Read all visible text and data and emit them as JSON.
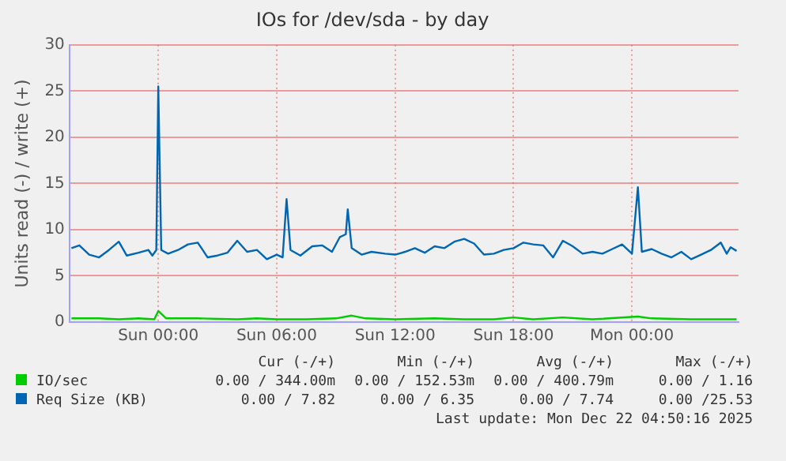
{
  "chart_data": {
    "type": "line",
    "title": "IOs for /dev/sda - by day",
    "ylabel": "Units read (-) / write (+)",
    "xlim": [
      "--12-20T19:30",
      "--12-22T05:24"
    ],
    "ylim": [
      0,
      30
    ],
    "yticks": [
      0,
      5,
      10,
      15,
      20,
      25,
      30
    ],
    "xticks": [
      {
        "value": "--12-21T00:00",
        "label": "Sun 00:00"
      },
      {
        "value": "--12-21T06:00",
        "label": "Sun 06:00"
      },
      {
        "value": "--12-21T12:00",
        "label": "Sun 12:00"
      },
      {
        "value": "--12-21T18:00",
        "label": "Sun 18:00"
      },
      {
        "value": "--12-22T00:00",
        "label": "Mon 00:00"
      }
    ],
    "grid": true,
    "legend": "bottom",
    "marker": "none",
    "line_style": "solid",
    "series": [
      {
        "name": "IO/sec",
        "color": "#00cc00",
        "x": [
          "--12-20T19:36",
          "--12-20T21:00",
          "--12-20T22:00",
          "--12-20T23:00",
          "--12-20T23:48",
          "--12-21T00:00",
          "--12-21T00:24",
          "--12-21T02:00",
          "--12-21T04:00",
          "--12-21T05:00",
          "--12-21T06:00",
          "--12-21T07:30",
          "--12-21T09:00",
          "--12-21T09:48",
          "--12-21T10:30",
          "--12-21T12:00",
          "--12-21T14:00",
          "--12-21T15:30",
          "--12-21T17:00",
          "--12-21T18:00",
          "--12-21T19:00",
          "--12-21T20:30",
          "--12-21T22:00",
          "--12-22T00:18",
          "--12-22T01:00",
          "--12-22T03:00",
          "--12-22T05:18"
        ],
        "values": [
          0.4,
          0.4,
          0.3,
          0.4,
          0.3,
          1.2,
          0.4,
          0.4,
          0.3,
          0.4,
          0.3,
          0.3,
          0.4,
          0.7,
          0.4,
          0.3,
          0.4,
          0.3,
          0.3,
          0.5,
          0.3,
          0.5,
          0.3,
          0.6,
          0.4,
          0.3,
          0.3
        ]
      },
      {
        "name": "Req Size (KB)",
        "color": "#0066b3",
        "x": [
          "--12-20T19:36",
          "--12-20T20:00",
          "--12-20T20:30",
          "--12-20T21:00",
          "--12-20T21:30",
          "--12-20T22:00",
          "--12-20T22:24",
          "--12-20T23:00",
          "--12-20T23:30",
          "--12-20T23:42",
          "--12-20T23:54",
          "--12-21T00:00",
          "--12-21T00:09",
          "--12-21T00:30",
          "--12-21T01:00",
          "--12-21T01:30",
          "--12-21T02:00",
          "--12-21T02:30",
          "--12-21T03:00",
          "--12-21T03:30",
          "--12-21T04:00",
          "--12-21T04:30",
          "--12-21T05:00",
          "--12-21T05:30",
          "--12-21T06:00",
          "--12-21T06:18",
          "--12-21T06:30",
          "--12-21T06:42",
          "--12-21T07:12",
          "--12-21T07:48",
          "--12-21T08:18",
          "--12-21T08:48",
          "--12-21T09:12",
          "--12-21T09:30",
          "--12-21T09:36",
          "--12-21T09:48",
          "--12-21T10:18",
          "--12-21T10:48",
          "--12-21T11:30",
          "--12-21T12:00",
          "--12-21T12:30",
          "--12-21T13:00",
          "--12-21T13:30",
          "--12-21T14:00",
          "--12-21T14:30",
          "--12-21T15:00",
          "--12-21T15:30",
          "--12-21T16:00",
          "--12-21T16:30",
          "--12-21T17:00",
          "--12-21T17:30",
          "--12-21T18:00",
          "--12-21T18:30",
          "--12-21T19:00",
          "--12-21T19:30",
          "--12-21T20:00",
          "--12-21T20:30",
          "--12-21T21:00",
          "--12-21T21:30",
          "--12-21T22:00",
          "--12-21T22:30",
          "--12-21T23:00",
          "--12-21T23:30",
          "--12-22T00:00",
          "--12-22T00:18",
          "--12-22T00:30",
          "--12-22T01:00",
          "--12-22T01:30",
          "--12-22T02:00",
          "--12-22T02:30",
          "--12-22T03:00",
          "--12-22T03:30",
          "--12-22T04:00",
          "--12-22T04:30",
          "--12-22T04:48",
          "--12-22T05:00",
          "--12-22T05:18"
        ],
        "values": [
          8,
          8.3,
          7.3,
          7.0,
          7.8,
          8.7,
          7.2,
          7.5,
          7.8,
          7.2,
          7.8,
          25.5,
          7.8,
          7.4,
          7.8,
          8.4,
          8.6,
          7.0,
          7.2,
          7.5,
          8.8,
          7.6,
          7.8,
          6.8,
          7.3,
          7.0,
          13.3,
          7.8,
          7.2,
          8.2,
          8.3,
          7.6,
          9.2,
          9.5,
          12.2,
          8.0,
          7.3,
          7.6,
          7.4,
          7.3,
          7.6,
          8.0,
          7.5,
          8.2,
          8.0,
          8.7,
          9.0,
          8.5,
          7.3,
          7.4,
          7.8,
          8.0,
          8.6,
          8.4,
          8.3,
          7.0,
          8.8,
          8.2,
          7.4,
          7.6,
          7.4,
          7.9,
          8.4,
          7.4,
          14.6,
          7.6,
          7.9,
          7.4,
          7.0,
          7.6,
          6.8,
          7.3,
          7.8,
          8.6,
          7.4,
          8.1,
          7.7
        ]
      }
    ],
    "annotations": [
      "Cur (-/+)",
      "Min (-/+)",
      "Avg (-/+)",
      "Max (-/+)",
      "0.00 / 344.00m",
      "0.00 / 152.53m",
      "0.00 / 400.79m",
      "0.00 / 1.16",
      "0.00 / 7.82",
      "0.00 / 6.35",
      "0.00 / 7.74",
      "0.00 /25.53",
      "Last update: Mon Dec 22 04:50:16 2025"
    ]
  }
}
